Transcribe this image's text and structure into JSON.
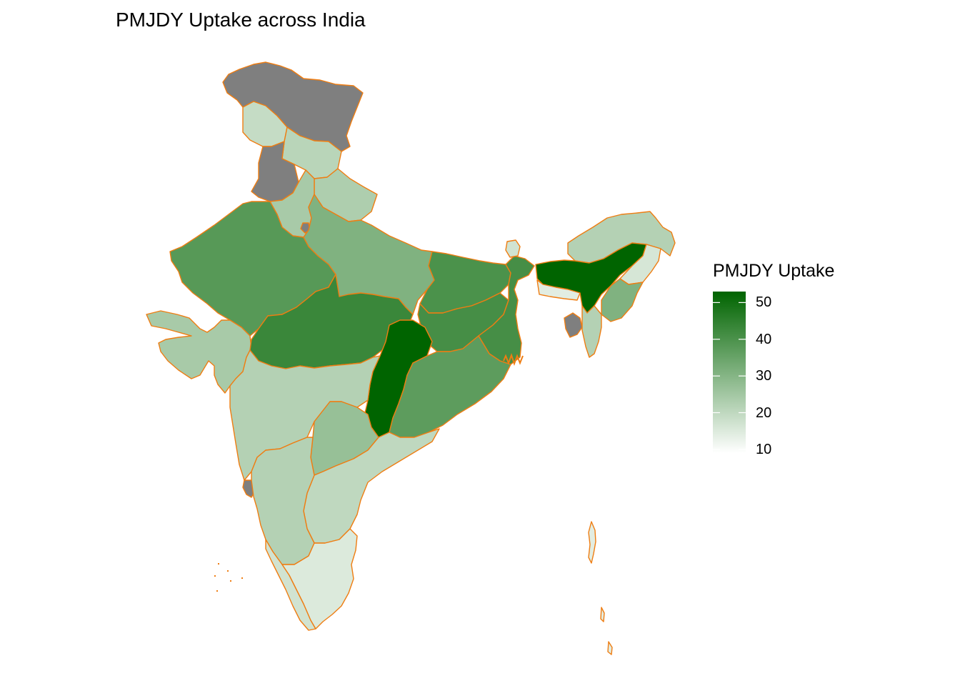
{
  "map": {
    "title": "PMJDY Uptake across India",
    "legend": {
      "title": "PMJDY Uptake",
      "ticks": [
        10,
        20,
        30,
        40,
        50
      ],
      "range": [
        9,
        53
      ],
      "low_color": "#ffffff",
      "high_color": "#006400"
    },
    "border_color": "#ef7d12",
    "na_color": "#7f7f7f",
    "regions": [
      {
        "id": "jammu-kashmir",
        "value": null
      },
      {
        "id": "ladakh",
        "value": 19
      },
      {
        "id": "himachal-pradesh",
        "value": 21
      },
      {
        "id": "punjab",
        "value": null
      },
      {
        "id": "uttarakhand",
        "value": 23
      },
      {
        "id": "haryana",
        "value": 24
      },
      {
        "id": "delhi",
        "value": null
      },
      {
        "id": "rajasthan",
        "value": 38
      },
      {
        "id": "uttar-pradesh",
        "value": 31
      },
      {
        "id": "gujarat",
        "value": 24
      },
      {
        "id": "madhya-pradesh",
        "value": 43
      },
      {
        "id": "bihar",
        "value": 40
      },
      {
        "id": "jharkhand",
        "value": 41
      },
      {
        "id": "west-bengal",
        "value": 41
      },
      {
        "id": "chhattisgarh",
        "value": 53
      },
      {
        "id": "odisha",
        "value": 37
      },
      {
        "id": "maharashtra",
        "value": 22
      },
      {
        "id": "telangana",
        "value": 27
      },
      {
        "id": "andhra-pradesh",
        "value": 20
      },
      {
        "id": "goa",
        "value": null
      },
      {
        "id": "karnataka",
        "value": 22
      },
      {
        "id": "kerala",
        "value": 17
      },
      {
        "id": "tamil-nadu",
        "value": 15
      },
      {
        "id": "sikkim",
        "value": 17
      },
      {
        "id": "arunachal-pradesh",
        "value": 22
      },
      {
        "id": "assam",
        "value": 53
      },
      {
        "id": "meghalaya",
        "value": 14
      },
      {
        "id": "nagaland",
        "value": 16
      },
      {
        "id": "manipur",
        "value": 31
      },
      {
        "id": "tripura",
        "value": null
      },
      {
        "id": "mizoram",
        "value": 22
      },
      {
        "id": "andaman-nicobar",
        "value": 14
      }
    ]
  }
}
